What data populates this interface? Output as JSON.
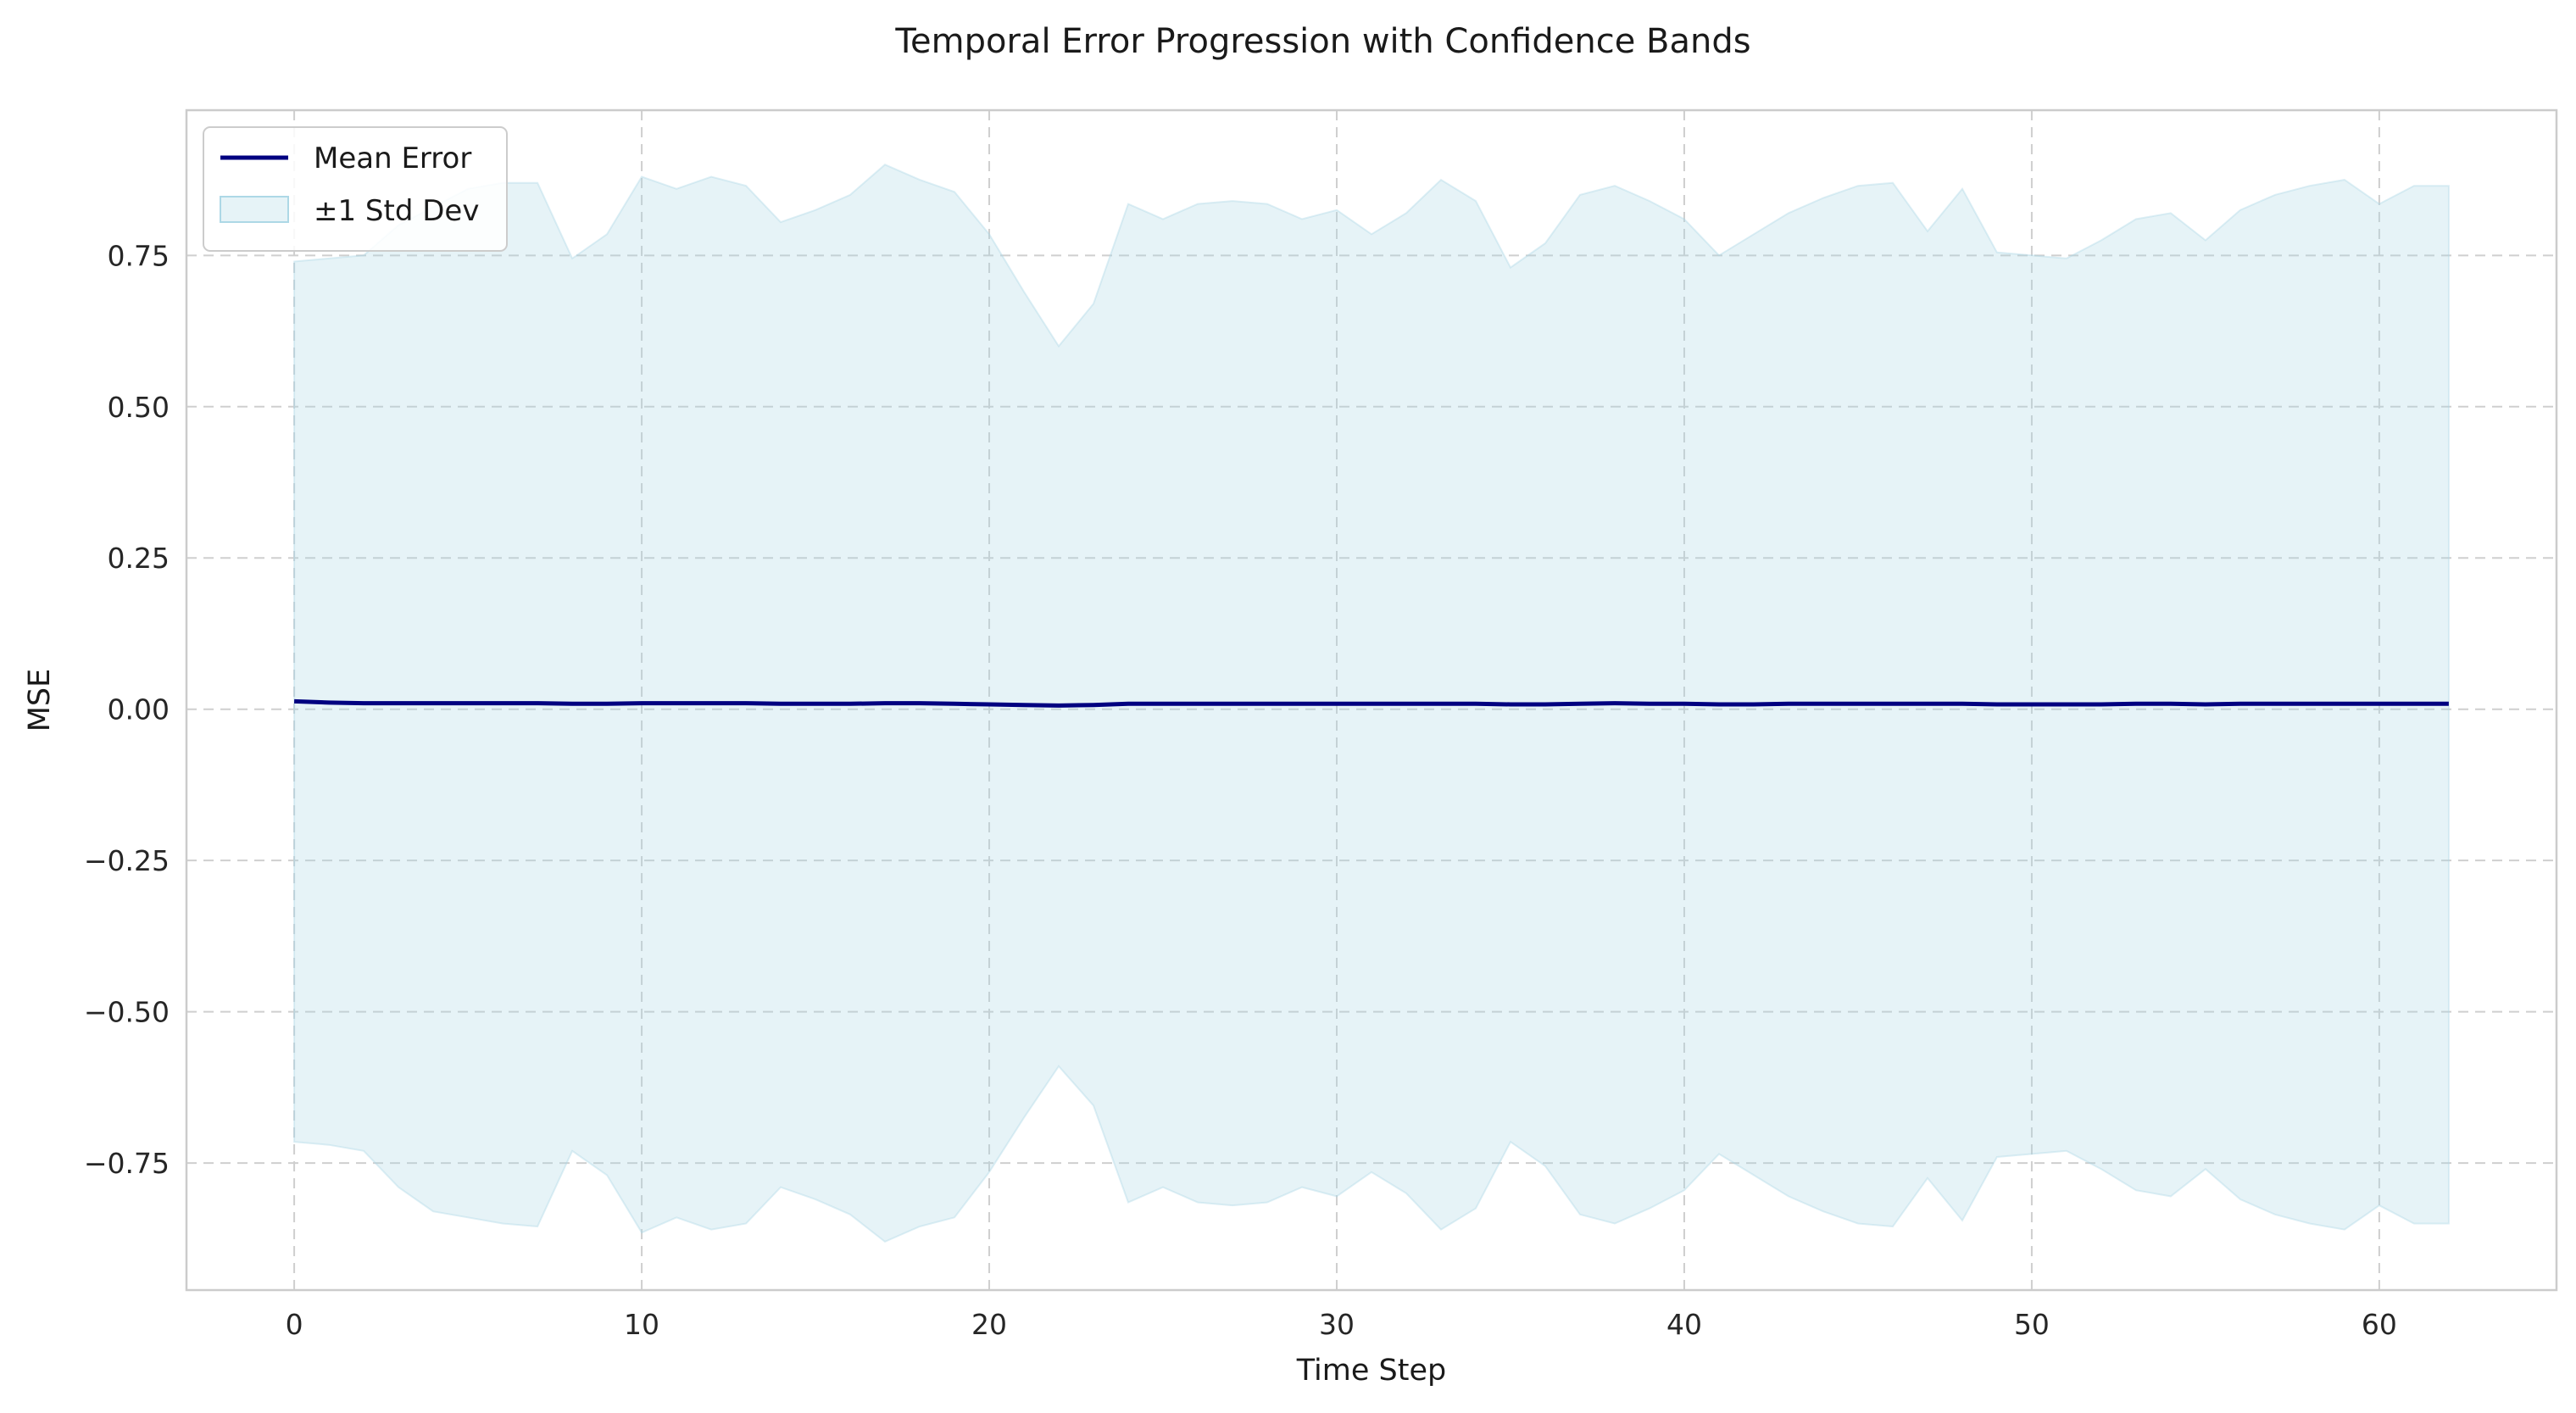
{
  "chart_data": {
    "type": "line",
    "title": "Temporal Error Progression with Confidence Bands",
    "xlabel": "Time Step",
    "ylabel": "MSE",
    "xlim": [
      -3.1,
      65.1
    ],
    "ylim": [
      -0.96,
      0.99
    ],
    "xticks": [
      0,
      10,
      20,
      30,
      40,
      50,
      60
    ],
    "yticks": [
      -0.75,
      -0.5,
      -0.25,
      0.0,
      0.25,
      0.5,
      0.75
    ],
    "ytick_labels": [
      "−0.75",
      "−0.50",
      "−0.25",
      "0.00",
      "0.25",
      "0.50",
      "0.75"
    ],
    "grid": true,
    "legend": "top-left",
    "colors": {
      "line": "#000080",
      "band": "#add8e6"
    },
    "x": [
      0,
      1,
      2,
      3,
      4,
      5,
      6,
      7,
      8,
      9,
      10,
      11,
      12,
      13,
      14,
      15,
      16,
      17,
      18,
      19,
      20,
      21,
      22,
      23,
      24,
      25,
      26,
      27,
      28,
      29,
      30,
      31,
      32,
      33,
      34,
      35,
      36,
      37,
      38,
      39,
      40,
      41,
      42,
      43,
      44,
      45,
      46,
      47,
      48,
      49,
      50,
      51,
      52,
      53,
      54,
      55,
      56,
      57,
      58,
      59,
      60,
      61,
      62
    ],
    "series": [
      {
        "name": "Mean Error",
        "values": [
          0.013,
          0.011,
          0.01,
          0.01,
          0.01,
          0.01,
          0.01,
          0.01,
          0.009,
          0.009,
          0.01,
          0.01,
          0.01,
          0.01,
          0.009,
          0.009,
          0.009,
          0.01,
          0.01,
          0.009,
          0.008,
          0.007,
          0.006,
          0.007,
          0.009,
          0.009,
          0.009,
          0.009,
          0.009,
          0.009,
          0.009,
          0.009,
          0.009,
          0.009,
          0.009,
          0.008,
          0.008,
          0.009,
          0.01,
          0.009,
          0.009,
          0.008,
          0.008,
          0.009,
          0.009,
          0.009,
          0.009,
          0.009,
          0.009,
          0.008,
          0.008,
          0.008,
          0.008,
          0.009,
          0.009,
          0.008,
          0.009,
          0.009,
          0.009,
          0.009,
          0.009,
          0.009,
          0.009
        ]
      },
      {
        "name": "±1 Std Dev",
        "upper": [
          0.74,
          0.745,
          0.75,
          0.8,
          0.83,
          0.86,
          0.87,
          0.87,
          0.745,
          0.785,
          0.88,
          0.86,
          0.88,
          0.865,
          0.805,
          0.825,
          0.85,
          0.9,
          0.875,
          0.855,
          0.785,
          0.69,
          0.6,
          0.67,
          0.835,
          0.81,
          0.835,
          0.84,
          0.835,
          0.81,
          0.825,
          0.785,
          0.82,
          0.875,
          0.84,
          0.73,
          0.77,
          0.85,
          0.865,
          0.84,
          0.81,
          0.75,
          0.785,
          0.82,
          0.845,
          0.865,
          0.87,
          0.79,
          0.86,
          0.755,
          0.75,
          0.745,
          0.775,
          0.81,
          0.82,
          0.775,
          0.825,
          0.85,
          0.865,
          0.875,
          0.835,
          0.865,
          0.865
        ],
        "lower": [
          -0.715,
          -0.72,
          -0.73,
          -0.79,
          -0.83,
          -0.84,
          -0.85,
          -0.855,
          -0.73,
          -0.77,
          -0.865,
          -0.84,
          -0.86,
          -0.85,
          -0.79,
          -0.81,
          -0.835,
          -0.88,
          -0.855,
          -0.84,
          -0.765,
          -0.675,
          -0.59,
          -0.655,
          -0.815,
          -0.79,
          -0.815,
          -0.82,
          -0.815,
          -0.79,
          -0.805,
          -0.765,
          -0.8,
          -0.86,
          -0.825,
          -0.715,
          -0.755,
          -0.835,
          -0.85,
          -0.825,
          -0.795,
          -0.735,
          -0.77,
          -0.805,
          -0.83,
          -0.85,
          -0.855,
          -0.775,
          -0.845,
          -0.74,
          -0.735,
          -0.73,
          -0.76,
          -0.795,
          -0.805,
          -0.76,
          -0.81,
          -0.835,
          -0.85,
          -0.86,
          -0.82,
          -0.85,
          -0.85
        ]
      }
    ]
  }
}
